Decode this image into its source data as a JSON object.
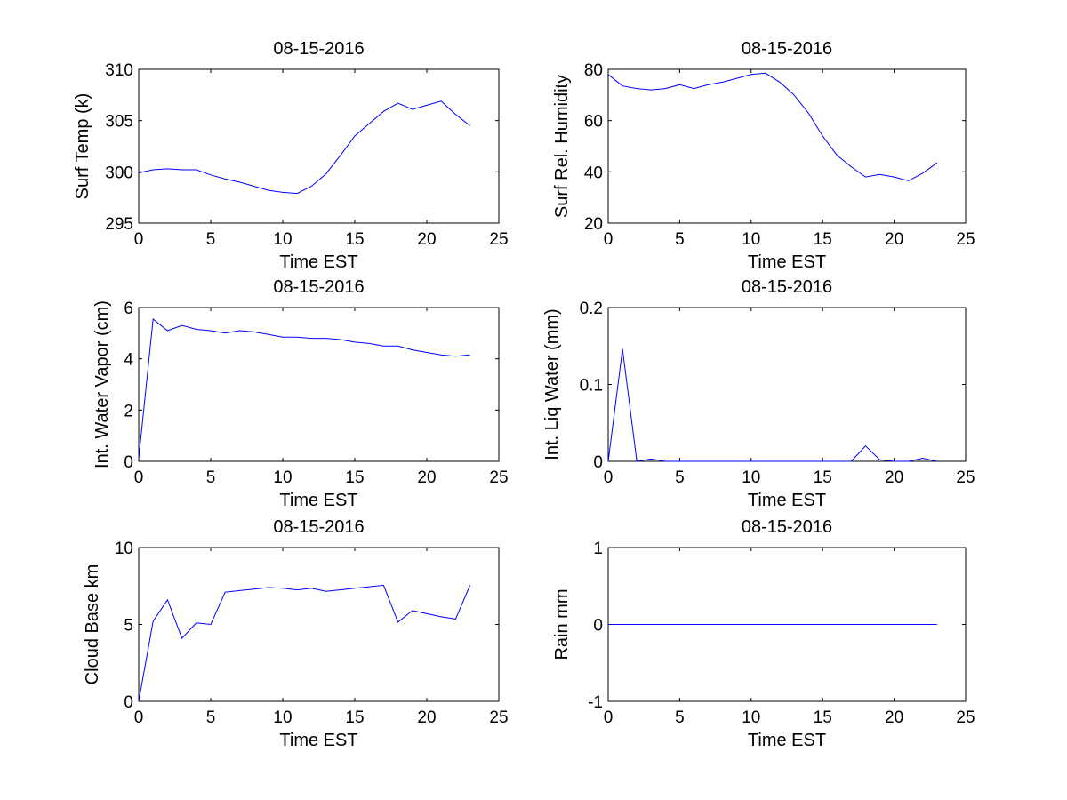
{
  "chart_data": [
    {
      "type": "line",
      "title": "08-15-2016",
      "xlabel": "Time EST",
      "ylabel": "Surf Temp (k)",
      "xlim": [
        0,
        25
      ],
      "ylim": [
        295,
        310
      ],
      "xticks": [
        "0",
        "5",
        "10",
        "15",
        "20",
        "25"
      ],
      "yticks": [
        "295",
        "300",
        "305",
        "310"
      ],
      "line_color": "#0000ff",
      "x": [
        0,
        1,
        2,
        3,
        4,
        5,
        6,
        7,
        8,
        9,
        10,
        11,
        12,
        13,
        14,
        15,
        16,
        17,
        18,
        19,
        20,
        21,
        22,
        23
      ],
      "y": [
        299.9,
        300.2,
        300.3,
        300.2,
        300.2,
        299.7,
        299.3,
        299.0,
        298.6,
        298.2,
        298.0,
        297.9,
        298.6,
        299.8,
        301.6,
        303.5,
        304.7,
        305.9,
        306.7,
        306.1,
        306.5,
        306.9,
        305.6,
        304.5
      ]
    },
    {
      "type": "line",
      "title": "08-15-2016",
      "xlabel": "Time EST",
      "ylabel": "Surf Rel. Humidity",
      "xlim": [
        0,
        25
      ],
      "ylim": [
        20,
        80
      ],
      "xticks": [
        "0",
        "5",
        "10",
        "15",
        "20",
        "25"
      ],
      "yticks": [
        "20",
        "40",
        "60",
        "80"
      ],
      "line_color": "#0000ff",
      "x": [
        0,
        1,
        2,
        3,
        4,
        5,
        6,
        7,
        8,
        9,
        10,
        11,
        12,
        13,
        14,
        15,
        16,
        17,
        18,
        19,
        20,
        21,
        22,
        23
      ],
      "y": [
        78,
        73.5,
        72.5,
        72,
        72.5,
        74,
        72.5,
        74,
        75,
        76.5,
        78,
        78.5,
        75,
        70,
        63,
        54,
        46.5,
        42,
        38,
        39,
        38,
        36.5,
        39.5,
        43.5
      ]
    },
    {
      "type": "line",
      "title": "08-15-2016",
      "xlabel": "Time EST",
      "ylabel": "Int. Water Vapor (cm)",
      "xlim": [
        0,
        25
      ],
      "ylim": [
        0,
        6
      ],
      "xticks": [
        "0",
        "5",
        "10",
        "15",
        "20",
        "25"
      ],
      "yticks": [
        "0",
        "2",
        "4",
        "6"
      ],
      "line_color": "#0000ff",
      "x": [
        0,
        1,
        2,
        3,
        4,
        5,
        6,
        7,
        8,
        9,
        10,
        11,
        12,
        13,
        14,
        15,
        16,
        17,
        18,
        19,
        20,
        21,
        22,
        23
      ],
      "y": [
        0.1,
        5.55,
        5.1,
        5.3,
        5.15,
        5.1,
        5.0,
        5.1,
        5.05,
        4.95,
        4.85,
        4.85,
        4.8,
        4.8,
        4.75,
        4.65,
        4.6,
        4.5,
        4.5,
        4.35,
        4.25,
        4.15,
        4.1,
        4.15
      ]
    },
    {
      "type": "line",
      "title": "08-15-2016",
      "xlabel": "Time EST",
      "ylabel": "Int. Liq Water (mm)",
      "xlim": [
        0,
        25
      ],
      "ylim": [
        0,
        0.2
      ],
      "xticks": [
        "0",
        "5",
        "10",
        "15",
        "20",
        "25"
      ],
      "yticks": [
        "0",
        "0.1",
        "0.2"
      ],
      "line_color": "#0000ff",
      "x": [
        0,
        1,
        2,
        3,
        4,
        5,
        6,
        7,
        8,
        9,
        10,
        11,
        12,
        13,
        14,
        15,
        16,
        17,
        18,
        19,
        20,
        21,
        22,
        23
      ],
      "y": [
        0,
        0.146,
        0,
        0.003,
        0,
        0,
        0,
        0,
        0,
        0,
        0,
        0,
        0,
        0,
        0,
        0,
        0,
        0,
        0.02,
        0.002,
        0,
        0,
        0.004,
        0
      ]
    },
    {
      "type": "line",
      "title": "08-15-2016",
      "xlabel": "Time EST",
      "ylabel": "Cloud Base km",
      "xlim": [
        0,
        25
      ],
      "ylim": [
        0,
        10
      ],
      "xticks": [
        "0",
        "5",
        "10",
        "15",
        "20",
        "25"
      ],
      "yticks": [
        "0",
        "5",
        "10"
      ],
      "line_color": "#0000ff",
      "x": [
        0,
        1,
        2,
        3,
        4,
        5,
        6,
        7,
        8,
        9,
        10,
        11,
        12,
        13,
        14,
        15,
        16,
        17,
        18,
        19,
        20,
        21,
        22,
        23
      ],
      "y": [
        0,
        5.2,
        6.6,
        4.1,
        5.1,
        5.0,
        7.1,
        7.2,
        7.3,
        7.4,
        7.35,
        7.25,
        7.35,
        7.15,
        7.25,
        7.35,
        7.45,
        7.55,
        5.15,
        5.9,
        5.7,
        5.5,
        5.35,
        7.55
      ]
    },
    {
      "type": "line",
      "title": "08-15-2016",
      "xlabel": "Time EST",
      "ylabel": "Rain mm",
      "xlim": [
        0,
        25
      ],
      "ylim": [
        -1,
        1
      ],
      "xticks": [
        "0",
        "5",
        "10",
        "15",
        "20",
        "25"
      ],
      "yticks": [
        "-1",
        "0",
        "1"
      ],
      "line_color": "#0000ff",
      "x": [
        0,
        1,
        2,
        3,
        4,
        5,
        6,
        7,
        8,
        9,
        10,
        11,
        12,
        13,
        14,
        15,
        16,
        17,
        18,
        19,
        20,
        21,
        22,
        23
      ],
      "y": [
        0,
        0,
        0,
        0,
        0,
        0,
        0,
        0,
        0,
        0,
        0,
        0,
        0,
        0,
        0,
        0,
        0,
        0,
        0,
        0,
        0,
        0,
        0,
        0
      ]
    }
  ]
}
